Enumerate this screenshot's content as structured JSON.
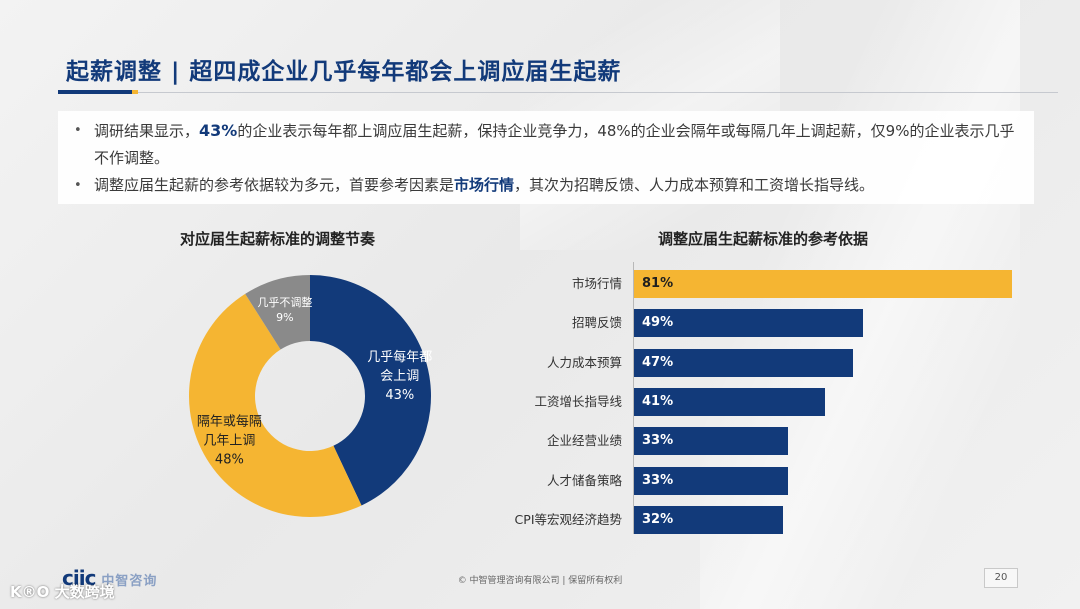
{
  "header": {
    "title": "起薪调整 | 超四成企业几乎每年都会上调应届生起薪"
  },
  "bullets": [
    {
      "pre": "调研结果显示，",
      "highlight": "43%",
      "post": "的企业表示每年都上调应届生起薪，保持企业竞争力，48%的企业会隔年或每隔几年上调起薪，仅9%的企业表示几乎不作调整。"
    },
    {
      "pre": "调整应届生起薪的参考依据较为多元，首要参考因素是",
      "highlight": "市场行情",
      "post": "，其次为招聘反馈、人力成本预算和工资增长指导线。"
    }
  ],
  "chart_data": [
    {
      "type": "pie",
      "title": "对应届生起薪标准的调整节奏",
      "slices": [
        {
          "label": "几乎每年都会上调",
          "label_lines": [
            "几乎每年都",
            "会上调"
          ],
          "value": 43,
          "display": "43%",
          "color": "#123a7a"
        },
        {
          "label": "隔年或每隔几年上调",
          "label_lines": [
            "隔年或每隔",
            "几年上调"
          ],
          "value": 48,
          "display": "48%",
          "color": "#f5b532"
        },
        {
          "label": "几乎不调整",
          "label_lines": [
            "几乎不调整"
          ],
          "value": 9,
          "display": "9%",
          "color": "#8a8a8a"
        }
      ]
    },
    {
      "type": "bar",
      "orientation": "horizontal",
      "title": "调整应届生起薪标准的参考依据",
      "categories": [
        "市场行情",
        "招聘反馈",
        "人力成本预算",
        "工资增长指导线",
        "企业经营业绩",
        "人才储备策略",
        "CPI等宏观经济趋势"
      ],
      "values": [
        81,
        49,
        47,
        41,
        33,
        33,
        32
      ],
      "labels": [
        "81%",
        "49%",
        "47%",
        "41%",
        "33%",
        "33%",
        "32%"
      ],
      "colors": [
        "#f5b532",
        "#123a7a",
        "#123a7a",
        "#123a7a",
        "#123a7a",
        "#123a7a",
        "#123a7a"
      ],
      "xlim": [
        0,
        81
      ]
    }
  ],
  "footer": {
    "copyright": "© 中智管理咨询有限公司 | 保留所有权利",
    "page": "20"
  },
  "brand": {
    "logo": "ciic",
    "logo_cn": "中智咨询",
    "watermark": "K®O 大数跨境"
  },
  "colors": {
    "accent": "#123a7a",
    "highlight": "#f5b532",
    "gray": "#8a8a8a"
  }
}
